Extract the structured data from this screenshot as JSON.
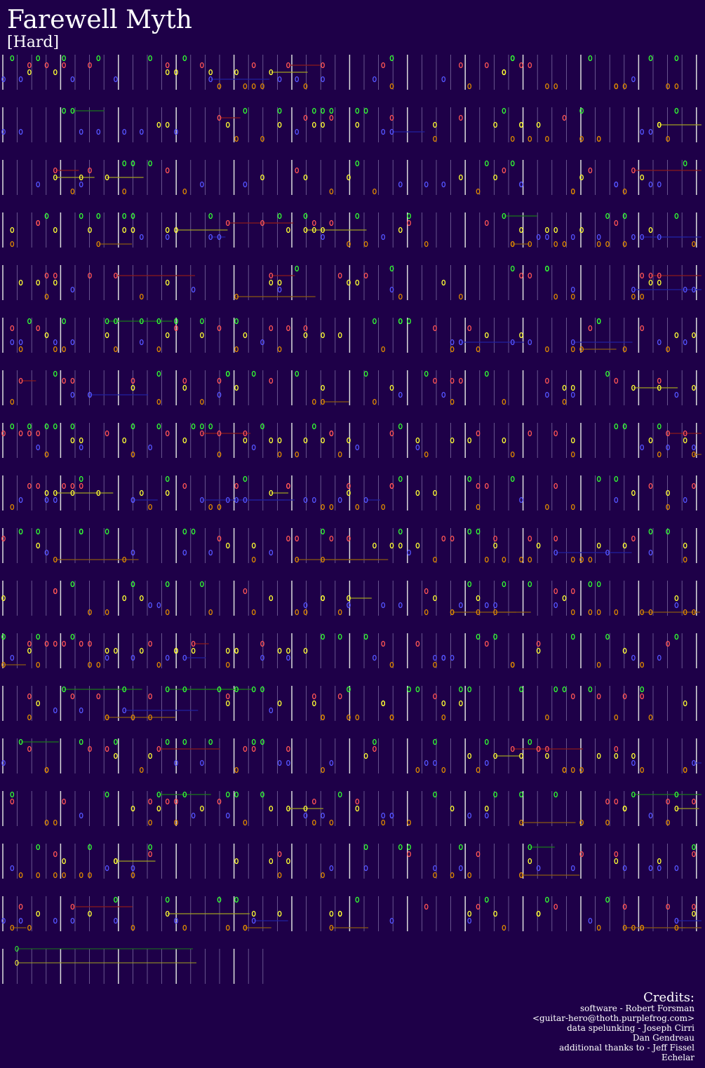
{
  "header": {
    "title": "Farewell Myth",
    "difficulty": "[Hard]"
  },
  "credits": {
    "heading": "Credits:",
    "lines": [
      "software - Robert Forsman",
      "<guitar-hero@thoth.purplefrog.com>",
      "data spelunking - Joseph Cirri",
      "Dan Gendreau",
      "additional thanks to - Jeff Fissel",
      "Echelar"
    ]
  }
}
